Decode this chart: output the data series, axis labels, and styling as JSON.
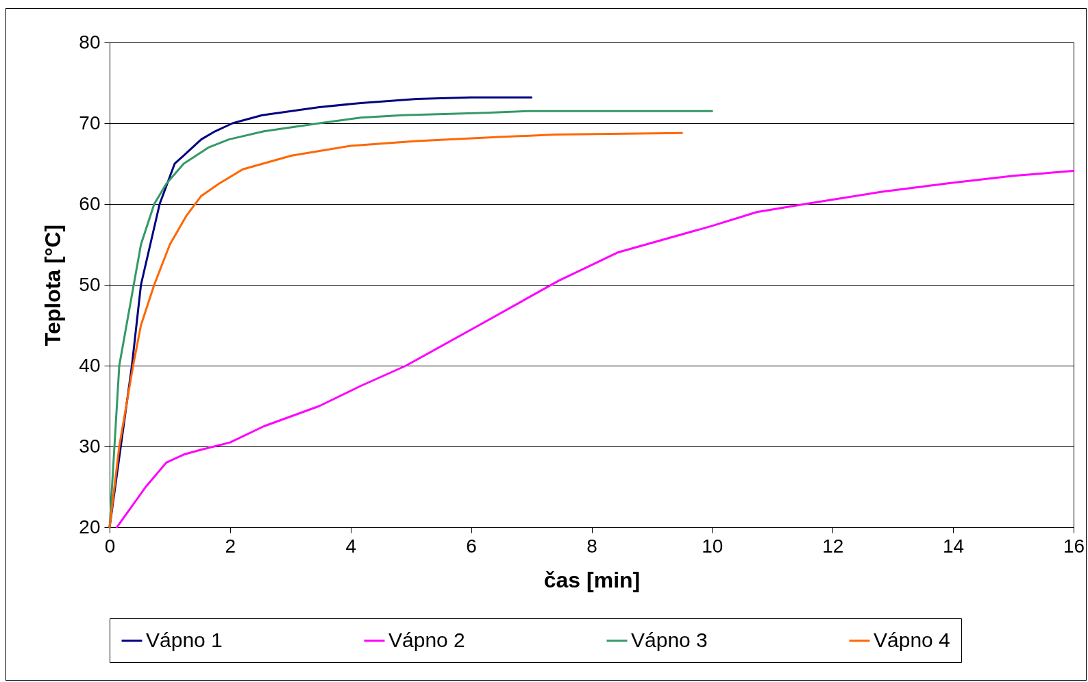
{
  "chart_data": {
    "type": "line",
    "xlabel": "čas [min]",
    "ylabel": "Teplota [°C]",
    "xlim": [
      0,
      16
    ],
    "xticks": [
      0,
      2,
      4,
      6,
      8,
      10,
      12,
      14,
      16
    ],
    "ylim": [
      20,
      80
    ],
    "yticks": [
      20,
      30,
      40,
      50,
      60,
      70,
      80
    ],
    "grid": "y",
    "legend": "bottom",
    "marker": "none",
    "line_style": "solid",
    "series": [
      {
        "name": "Vápno 1",
        "color": "#000080",
        "x": [
          0,
          0.37,
          0.52,
          0.83,
          1.08,
          1.23,
          1.52,
          1.75,
          2.04,
          2.53,
          3.48,
          4.17,
          5.1,
          6.0,
          7.0
        ],
        "values": [
          20,
          40,
          50,
          60,
          65,
          66,
          68,
          69,
          70,
          71,
          72,
          72.5,
          73,
          73.2,
          73.2
        ]
      },
      {
        "name": "Vápno 2",
        "color": "#ff00ff",
        "x": [
          0.12,
          0.6,
          0.94,
          1.23,
          1.52,
          2.0,
          2.56,
          3.48,
          4.17,
          4.92,
          6.13,
          7.45,
          8.43,
          10,
          10.74,
          11.54,
          12.8,
          13.96,
          15.0,
          16
        ],
        "values": [
          20,
          25,
          28,
          29,
          29.6,
          30.5,
          32.5,
          35,
          37.5,
          40,
          45,
          50.5,
          54,
          57.3,
          59,
          60,
          61.5,
          62.6,
          63.5,
          64.1
        ]
      },
      {
        "name": "Vápno 3",
        "color": "#339966",
        "x": [
          0,
          0.16,
          0.4,
          0.52,
          0.74,
          0.94,
          1.23,
          1.64,
          1.98,
          2.56,
          3.48,
          4.17,
          4.86,
          6.24,
          6.94,
          10
        ],
        "values": [
          20,
          40,
          50,
          55,
          60,
          62.5,
          65,
          67,
          68,
          69,
          70,
          70.7,
          71,
          71.3,
          71.5,
          71.5
        ]
      },
      {
        "name": "Vápno 4",
        "color": "#ff6600",
        "x": [
          0,
          0.16,
          0.39,
          0.52,
          0.74,
          1.0,
          1.27,
          1.52,
          1.81,
          2.21,
          3.02,
          4.0,
          5.09,
          6.47,
          7.4,
          8.55,
          9.5
        ],
        "values": [
          20,
          30,
          40,
          45,
          50,
          55,
          58.5,
          61,
          62.5,
          64.3,
          66,
          67.2,
          67.8,
          68.3,
          68.6,
          68.7,
          68.8
        ]
      }
    ]
  }
}
